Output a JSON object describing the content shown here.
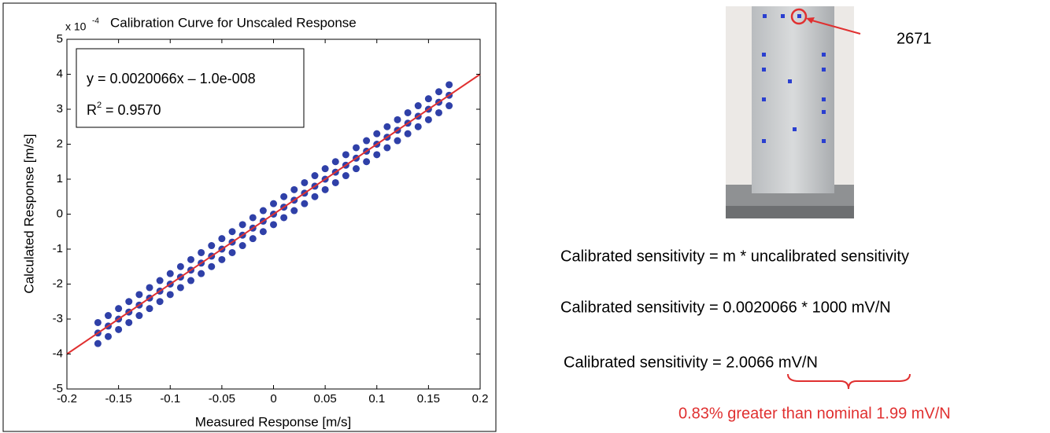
{
  "chart_data": {
    "type": "scatter",
    "title": "Calibration Curve for Unscaled Response",
    "y_multiplier": "x 10",
    "y_multiplier_exponent": "-4",
    "x_label": "Measured Response [m/s]",
    "y_label": "Calculated Response [m/s]",
    "equation": "y = 0.0020066x – 1.0e-008",
    "r_squared": {
      "symbol": "R",
      "power": "2",
      "text": " = 0.9570"
    },
    "xlim": [
      -0.2,
      0.2
    ],
    "xticks": [
      -0.2,
      -0.15,
      -0.1,
      -0.05,
      0,
      0.05,
      0.1,
      0.15,
      0.2
    ],
    "ylim": [
      -5,
      5
    ],
    "yticks": [
      -5,
      -4,
      -3,
      -2,
      -1,
      0,
      1,
      2,
      3,
      4,
      5
    ],
    "x": [
      -0.17,
      -0.16,
      -0.15,
      -0.14,
      -0.13,
      -0.12,
      -0.11,
      -0.1,
      -0.09,
      -0.08,
      -0.07,
      -0.06,
      -0.05,
      -0.04,
      -0.03,
      -0.02,
      -0.01,
      0,
      0.01,
      0.02,
      0.03,
      0.04,
      0.05,
      0.06,
      0.07,
      0.08,
      0.09,
      0.1,
      0.11,
      0.12,
      0.13,
      0.14,
      0.15,
      0.16,
      0.17
    ],
    "series": [
      {
        "color": "#2f40a8",
        "values": [
          -3.1,
          -2.9,
          -2.7,
          -2.5,
          -2.3,
          -2.1,
          -1.9,
          -1.7,
          -1.5,
          -1.3,
          -1.1,
          -0.9,
          -0.7,
          -0.5,
          -0.3,
          -0.1,
          0.1,
          0.3,
          0.5,
          0.7,
          0.9,
          1.1,
          1.3,
          1.5,
          1.7,
          1.9,
          2.1,
          2.3,
          2.5,
          2.7,
          2.9,
          3.1,
          3.3,
          3.5,
          3.7
        ]
      },
      {
        "color": "#2f40a8",
        "values": [
          -3.4,
          -3.2,
          -3.0,
          -2.8,
          -2.6,
          -2.4,
          -2.2,
          -2.0,
          -1.8,
          -1.6,
          -1.4,
          -1.2,
          -1.0,
          -0.8,
          -0.6,
          -0.4,
          -0.2,
          0,
          0.2,
          0.4,
          0.6,
          0.8,
          1.0,
          1.2,
          1.4,
          1.6,
          1.8,
          2.0,
          2.2,
          2.4,
          2.6,
          2.8,
          3.0,
          3.2,
          3.4
        ]
      },
      {
        "color": "#2f40a8",
        "values": [
          -3.7,
          -3.5,
          -3.3,
          -3.1,
          -2.9,
          -2.7,
          -2.5,
          -2.3,
          -2.1,
          -1.9,
          -1.7,
          -1.5,
          -1.3,
          -1.1,
          -0.9,
          -0.7,
          -0.5,
          -0.3,
          -0.1,
          0.1,
          0.3,
          0.5,
          0.7,
          0.9,
          1.1,
          1.3,
          1.5,
          1.7,
          1.9,
          2.1,
          2.3,
          2.5,
          2.7,
          2.9,
          3.1
        ]
      }
    ],
    "fit_line": {
      "type": "line",
      "color": "#e03030",
      "x": [
        -0.2,
        0.2
      ],
      "values": [
        -4.0,
        4.0
      ]
    }
  },
  "figure": {
    "callout": "2671",
    "lines": [
      "Calibrated sensitivity = m * uncalibrated sensitivity",
      "Calibrated sensitivity = 0.0020066 * 1000 mV/N",
      "Calibrated sensitivity = 2.0066 mV/N"
    ],
    "note": "0.83% greater than nominal 1.99 mV/N"
  }
}
